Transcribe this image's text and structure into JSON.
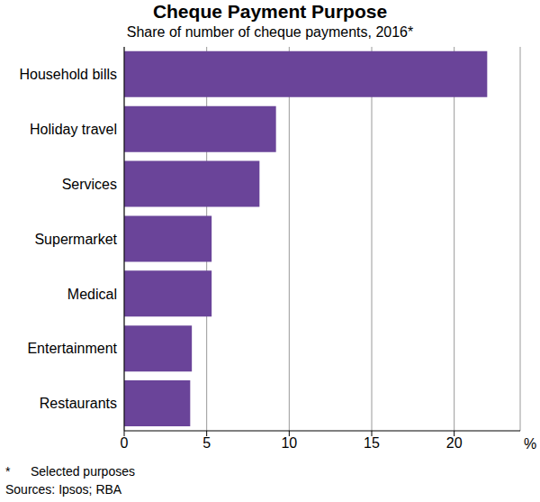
{
  "chart_data": {
    "type": "bar",
    "orientation": "horizontal",
    "title": "Cheque Payment Purpose",
    "subtitle": "Share of number of cheque payments, 2016*",
    "categories": [
      "Household bills",
      "Holiday travel",
      "Services",
      "Supermarket",
      "Medical",
      "Entertainment",
      "Restaurants"
    ],
    "values": [
      22,
      9.2,
      8.2,
      5.3,
      5.3,
      4.1,
      4.0
    ],
    "color": "#6a4499",
    "xlim": [
      0,
      24
    ],
    "xticks": [
      0,
      5,
      10,
      15,
      20
    ],
    "xlabel": "%",
    "grid": true,
    "footnote": {
      "marker": "*",
      "text": "Selected purposes"
    },
    "source": "Sources: Ipsos; RBA"
  }
}
